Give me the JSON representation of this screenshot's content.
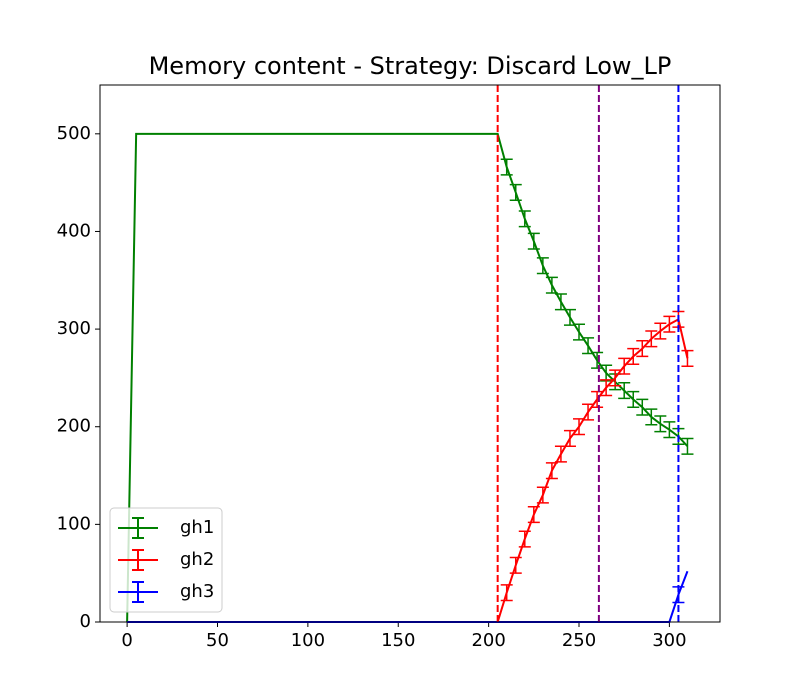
{
  "chart_data": {
    "type": "line",
    "title": "Memory content - Strategy: Discard Low_LP",
    "x": [
      0,
      5,
      200,
      205,
      210,
      215,
      220,
      225,
      230,
      235,
      240,
      245,
      250,
      255,
      260,
      265,
      270,
      275,
      280,
      285,
      290,
      295,
      300,
      305,
      310
    ],
    "series": [
      {
        "name": "gh1",
        "color": "#008000",
        "values": [
          0,
          500,
          500,
          500,
          466,
          440,
          413,
          390,
          365,
          345,
          328,
          312,
          297,
          283,
          268,
          255,
          246,
          237,
          228,
          220,
          210,
          203,
          197,
          190,
          180
        ],
        "errors": [
          0,
          0,
          0,
          0,
          8,
          8,
          8,
          8,
          8,
          8,
          8,
          8,
          8,
          8,
          8,
          8,
          8,
          8,
          8,
          8,
          8,
          8,
          8,
          8,
          8
        ]
      },
      {
        "name": "gh2",
        "color": "#ff0000",
        "values": [
          0,
          0,
          0,
          0,
          30,
          58,
          85,
          110,
          130,
          155,
          172,
          188,
          200,
          215,
          228,
          240,
          250,
          262,
          272,
          280,
          290,
          298,
          305,
          310,
          270
        ],
        "errors": [
          0,
          0,
          0,
          0,
          8,
          8,
          8,
          8,
          8,
          8,
          8,
          8,
          8,
          8,
          8,
          8,
          8,
          8,
          8,
          8,
          8,
          8,
          8,
          8,
          8
        ]
      },
      {
        "name": "gh3",
        "color": "#0000ff",
        "values": [
          0,
          0,
          0,
          0,
          0,
          0,
          0,
          0,
          0,
          0,
          0,
          0,
          0,
          0,
          0,
          0,
          0,
          0,
          0,
          0,
          0,
          0,
          0,
          28,
          52
        ],
        "errors": [
          0,
          0,
          0,
          0,
          0,
          0,
          0,
          0,
          0,
          0,
          0,
          0,
          0,
          0,
          0,
          0,
          0,
          0,
          0,
          0,
          0,
          0,
          0,
          8,
          0
        ]
      }
    ],
    "vlines": [
      {
        "x": 205,
        "color": "#ff0000"
      },
      {
        "x": 261,
        "color": "#800080"
      },
      {
        "x": 305,
        "color": "#0000ff"
      }
    ],
    "xlim": [
      -15,
      328
    ],
    "ylim": [
      0,
      550
    ],
    "xticks": [
      0,
      50,
      100,
      150,
      200,
      250,
      300
    ],
    "yticks": [
      0,
      100,
      200,
      300,
      400,
      500
    ],
    "legend": "lower left"
  }
}
